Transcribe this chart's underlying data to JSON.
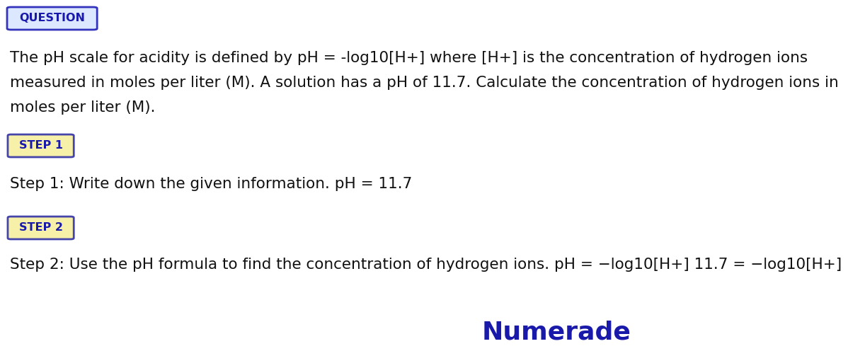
{
  "bg_color": "#ffffff",
  "question_label": "QUESTION",
  "question_box_bg": "#dce8ff",
  "question_box_border": "#3333bb",
  "step1_label": "STEP 1",
  "step1_box_bg": "#f7f0a8",
  "step1_box_border": "#4444aa",
  "step2_label": "STEP 2",
  "step2_box_bg": "#f7f0a8",
  "step2_box_border": "#4444aa",
  "label_color": "#1a1aaa",
  "body_color": "#111111",
  "question_text_line1": "The pH scale for acidity is defined by pH = -log10[H+] where [H+] is the concentration of hydrogen ions",
  "question_text_line2": "measured in moles per liter (M). A solution has a pH of 11.7. Calculate the concentration of hydrogen ions in",
  "question_text_line3": "moles per liter (M).",
  "step1_text": "Step 1: Write down the given information. pH = 11.7",
  "step2_text": "Step 2: Use the pH formula to find the concentration of hydrogen ions. pH = −log10[H+] 11.7 = −log10[H+]",
  "numerade_text": "Numerade",
  "numerade_color": "#1a1aaa",
  "font_size_body": 15.5,
  "font_size_label": 11.5,
  "font_size_numerade": 26
}
